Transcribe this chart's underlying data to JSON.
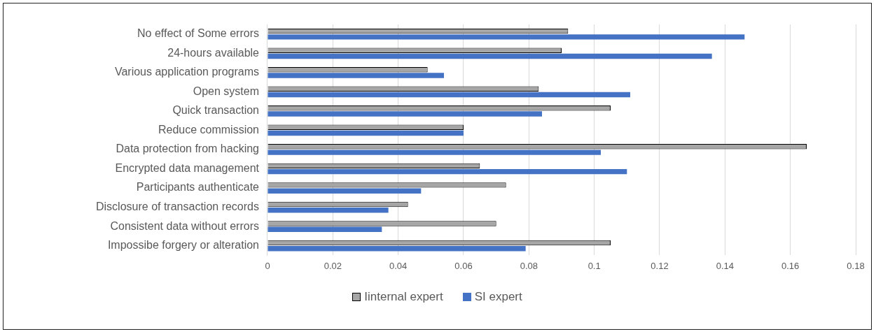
{
  "chart_data": {
    "type": "bar",
    "orientation": "horizontal",
    "categories": [
      "No effect of Some errors",
      "24-hours available",
      "Various application programs",
      "Open system",
      "Quick transaction",
      "Reduce commission",
      "Data protection from hacking",
      "Encrypted data management",
      "Participants authenticate",
      "Disclosure of transaction records",
      "Consistent data without errors",
      "Impossibe forgery or alteration"
    ],
    "series": [
      {
        "name": "Iinternal expert",
        "color": "#a6a6a6",
        "values": [
          0.092,
          0.09,
          0.049,
          0.083,
          0.105,
          0.06,
          0.165,
          0.065,
          0.073,
          0.043,
          0.07,
          0.105
        ]
      },
      {
        "name": "SI expert",
        "color": "#4472c4",
        "values": [
          0.146,
          0.136,
          0.054,
          0.111,
          0.084,
          0.06,
          0.102,
          0.11,
          0.047,
          0.037,
          0.035,
          0.079
        ]
      }
    ],
    "xlim": [
      0,
      0.18
    ],
    "xticks": [
      0,
      0.02,
      0.04,
      0.06,
      0.08,
      0.1,
      0.12,
      0.14,
      0.16,
      0.18
    ],
    "grid": "x",
    "legend": "bottom"
  }
}
